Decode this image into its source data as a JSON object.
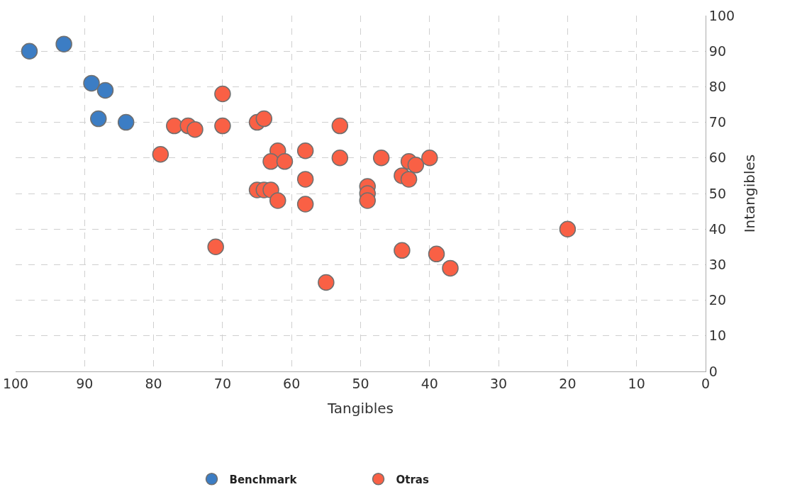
{
  "chart_data": {
    "type": "scatter",
    "xlabel": "Tangibles",
    "ylabel": "Intangibles",
    "xlim": [
      100,
      0
    ],
    "xticks": [
      100,
      90,
      80,
      70,
      60,
      50,
      40,
      30,
      20,
      10,
      0
    ],
    "ylim": [
      0,
      100
    ],
    "yticks": [
      0,
      10,
      20,
      30,
      40,
      50,
      60,
      70,
      80,
      90,
      100
    ],
    "grid": true,
    "legend": "bottom",
    "marker": "circle",
    "series": [
      {
        "name": "Benchmark",
        "color": "#3c7dc4",
        "x": [
          98,
          93,
          89,
          87,
          88,
          84
        ],
        "values": [
          90,
          92,
          81,
          79,
          71,
          70
        ]
      },
      {
        "name": "Otras",
        "color": "#f96045",
        "x": [
          70,
          77,
          75,
          74,
          70,
          65,
          64,
          53,
          79,
          62,
          58,
          63,
          61,
          53,
          47,
          43,
          42,
          40,
          44,
          43,
          58,
          65,
          64,
          63,
          62,
          58,
          49,
          49,
          49,
          20,
          71,
          44,
          39,
          37,
          55
        ],
        "values": [
          78,
          69,
          69,
          68,
          69,
          70,
          71,
          69,
          61,
          62,
          62,
          59,
          59,
          60,
          60,
          59,
          58,
          60,
          55,
          54,
          54,
          51,
          51,
          51,
          48,
          47,
          52,
          50,
          48,
          40,
          35,
          34,
          33,
          29,
          25
        ]
      }
    ]
  }
}
